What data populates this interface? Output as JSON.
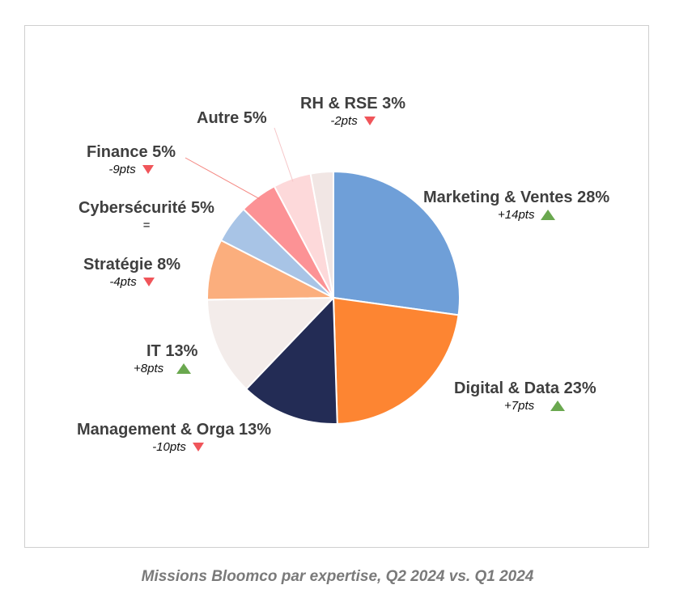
{
  "caption": "Missions Bloomco par expertise, Q2 2024 vs. Q1 2024",
  "chart_data": {
    "type": "pie",
    "title": "",
    "slices": [
      {
        "label": "Marketing & Ventes",
        "value": 28,
        "pct_text": "28%",
        "delta": "+14pts",
        "trend": "up",
        "color": "#6f9fd8"
      },
      {
        "label": "Digital & Data",
        "value": 23,
        "pct_text": "23%",
        "delta": "+7pts",
        "trend": "up",
        "color": "#fd8532"
      },
      {
        "label": "Management & Orga",
        "value": 13,
        "pct_text": "13%",
        "delta": "-10pts",
        "trend": "down",
        "color": "#232c55"
      },
      {
        "label": "IT",
        "value": 13,
        "pct_text": "13%",
        "delta": "+8pts",
        "trend": "up",
        "color": "#f3ecea"
      },
      {
        "label": "Stratégie",
        "value": 8,
        "pct_text": "8%",
        "delta": "-4pts",
        "trend": "down",
        "color": "#fbae7d"
      },
      {
        "label": "Cybersécurité",
        "value": 5,
        "pct_text": "5%",
        "delta": "=",
        "trend": "none",
        "color": "#a8c4e6"
      },
      {
        "label": "Finance",
        "value": 5,
        "pct_text": "5%",
        "delta": "-9pts",
        "trend": "down",
        "color": "#fc9295"
      },
      {
        "label": "Autre",
        "value": 5,
        "pct_text": "5%",
        "delta": "",
        "trend": "none",
        "color": "#fdd9da"
      },
      {
        "label": "RH & RSE",
        "value": 3,
        "pct_text": "3%",
        "delta": "-2pts",
        "trend": "down",
        "color": "#f1e6e4"
      }
    ],
    "legend": "none",
    "trend_colors": {
      "up": "#6aa84f",
      "down": "#f0555a"
    }
  }
}
